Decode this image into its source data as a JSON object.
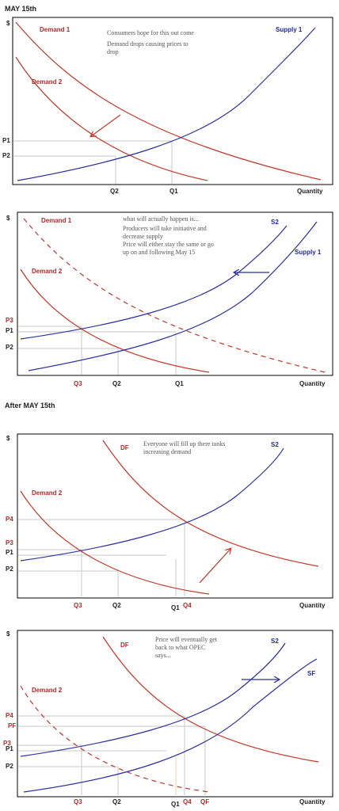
{
  "headings": {
    "top": "MAY 15th",
    "middle": "After MAY 15th"
  },
  "colors": {
    "demand": "#c0392b",
    "supply": "#2b2f9c",
    "grid": "#c8c8c8"
  },
  "panels": [
    {
      "dollar": "$",
      "x_axis": "Quantity",
      "notes": [
        "Consumers hope for this out come",
        "Demand drops causing prices to",
        "drop"
      ],
      "curves": {
        "demand1": "Demand 1",
        "demand2": "Demand 2",
        "supply1": "Supply 1"
      },
      "price_labels": {
        "p1": "P1",
        "p2": "P2"
      },
      "qty_labels": {
        "q2": "Q2",
        "q1": "Q1"
      }
    },
    {
      "dollar": "$",
      "x_axis": "Quantity",
      "notes": [
        "what will actually happen is...",
        "Producers will take initiative and",
        "decrease supply",
        "Price will either stay the same or go",
        "up on and following May 15"
      ],
      "curves": {
        "demand1": "Demand 1",
        "demand2": "Demand 2",
        "s2": "S2",
        "supply1": "Supply 1"
      },
      "price_labels": {
        "p3": "P3",
        "p1": "P1",
        "p2": "P2"
      },
      "qty_labels": {
        "q3": "Q3",
        "q2": "Q2",
        "q1": "Q1"
      }
    },
    {
      "dollar": "$",
      "x_axis": "Quantity",
      "notes": [
        "Everyone will fill up there tanks",
        "increasing demand"
      ],
      "curves": {
        "df": "DF",
        "demand2": "Demand 2",
        "s2": "S2"
      },
      "price_labels": {
        "p4": "P4",
        "p3": "P3",
        "p1": "P1",
        "p2": "P2"
      },
      "qty_labels": {
        "q3": "Q3",
        "q2": "Q2",
        "q1": "Q1",
        "q4": "Q4"
      }
    },
    {
      "dollar": "$",
      "x_axis": "Quantity",
      "notes": [
        "Price will eventually get",
        "back to what OPEC",
        "says..."
      ],
      "curves": {
        "df": "DF",
        "demand2": "Demand 2",
        "s2": "S2",
        "sf": "SF"
      },
      "price_labels": {
        "p4": "P4",
        "pf": "PF",
        "p3": "P3",
        "p1": "P1",
        "p2": "P2"
      },
      "qty_labels": {
        "q3": "Q3",
        "q2": "Q2",
        "q1": "Q1",
        "q4": "Q4",
        "qf": "QF"
      }
    }
  ]
}
